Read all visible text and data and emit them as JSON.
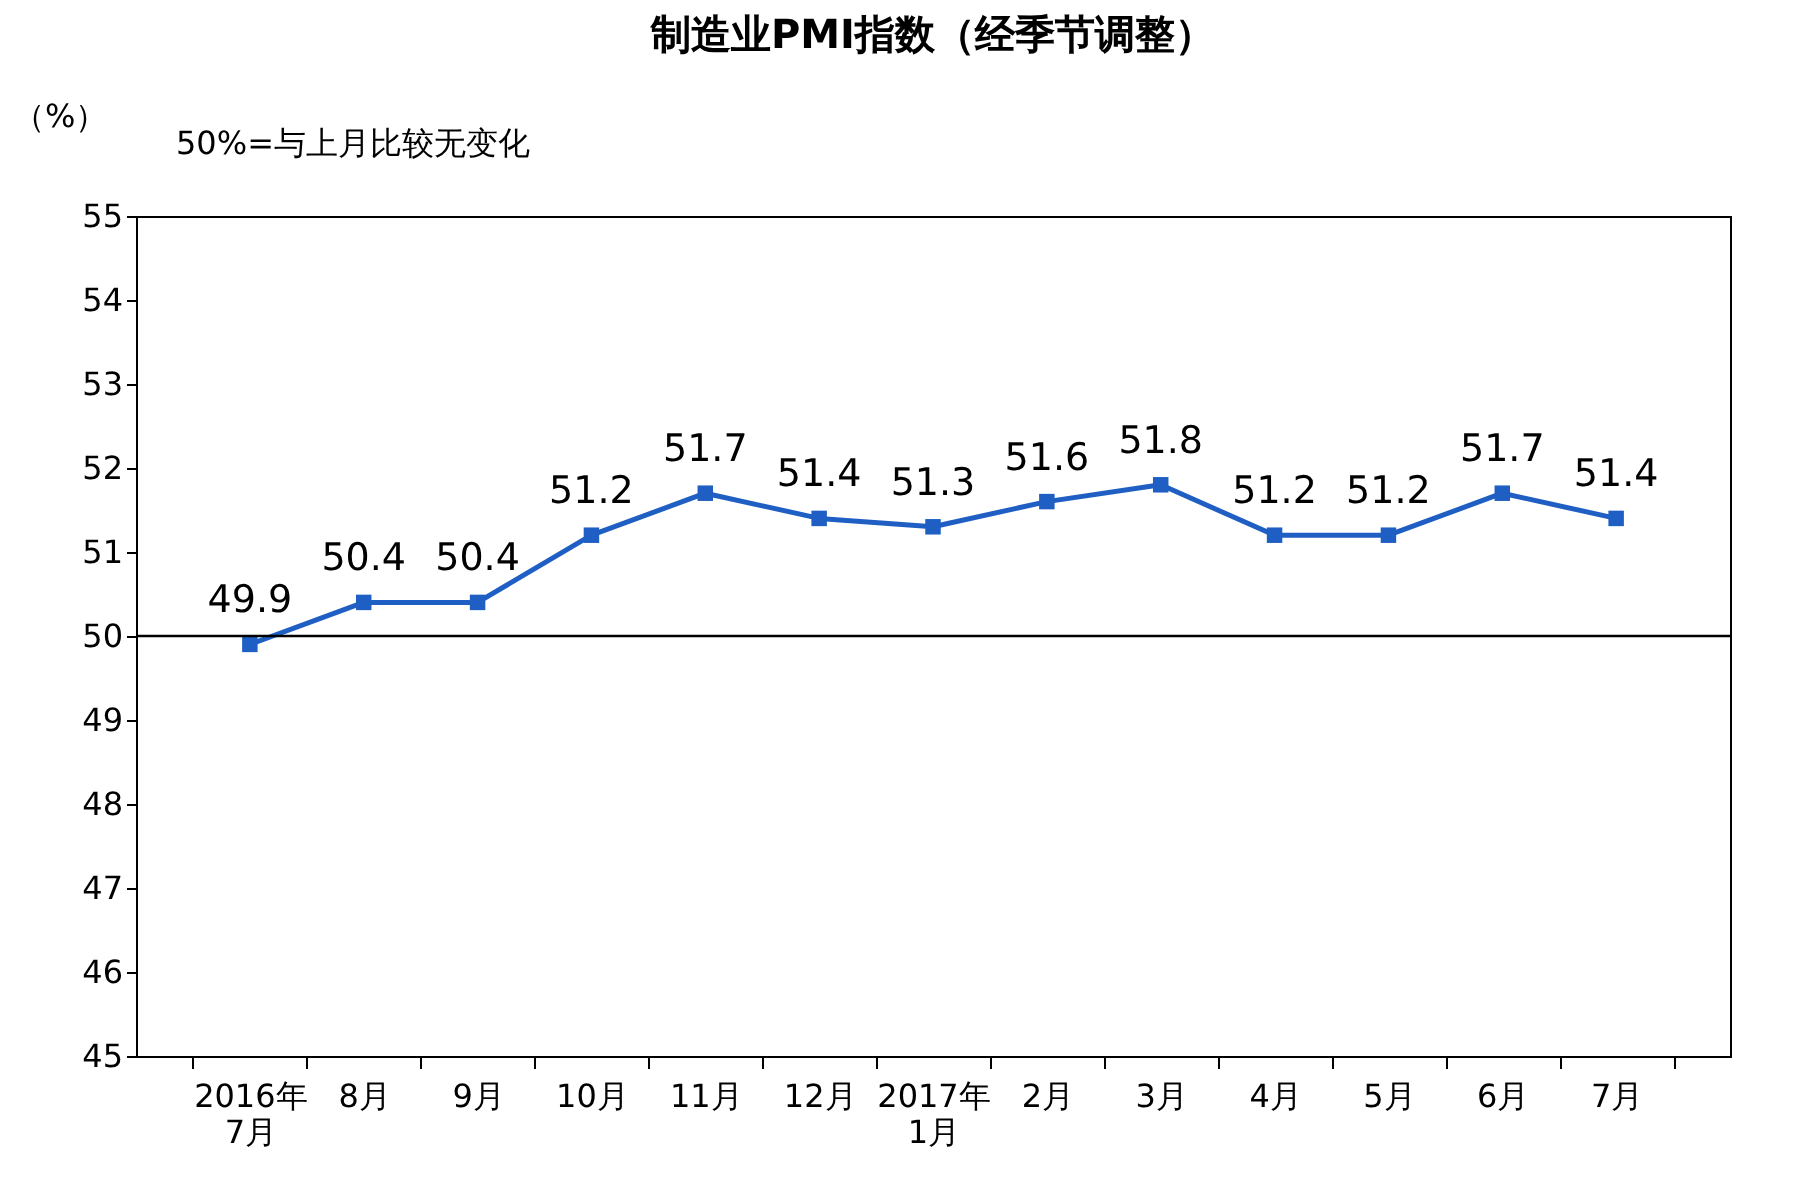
{
  "chart_data": {
    "type": "line",
    "title": "制造业PMI指数（经季节调整）",
    "ylabel": "（%）",
    "annotations": [
      "50%=与上月比较无变化"
    ],
    "categories": [
      "2016年\n7月",
      "8月",
      "9月",
      "10月",
      "11月",
      "12月",
      "2017年\n1月",
      "2月",
      "3月",
      "4月",
      "5月",
      "6月",
      "7月"
    ],
    "series": [
      {
        "color": "#1f5fc4",
        "values": [
          49.9,
          50.4,
          50.4,
          51.2,
          51.7,
          51.4,
          51.3,
          51.6,
          51.8,
          51.2,
          51.2,
          51.7,
          51.4
        ]
      }
    ],
    "ylim": [
      45,
      55
    ],
    "yticks": [
      45,
      46,
      47,
      48,
      49,
      50,
      51,
      52,
      53,
      54,
      55
    ],
    "ref_lines": [
      {
        "axis": "y",
        "value": 50,
        "color": "#000000"
      }
    ],
    "data_labels": true,
    "marker": "square",
    "grid": false
  }
}
